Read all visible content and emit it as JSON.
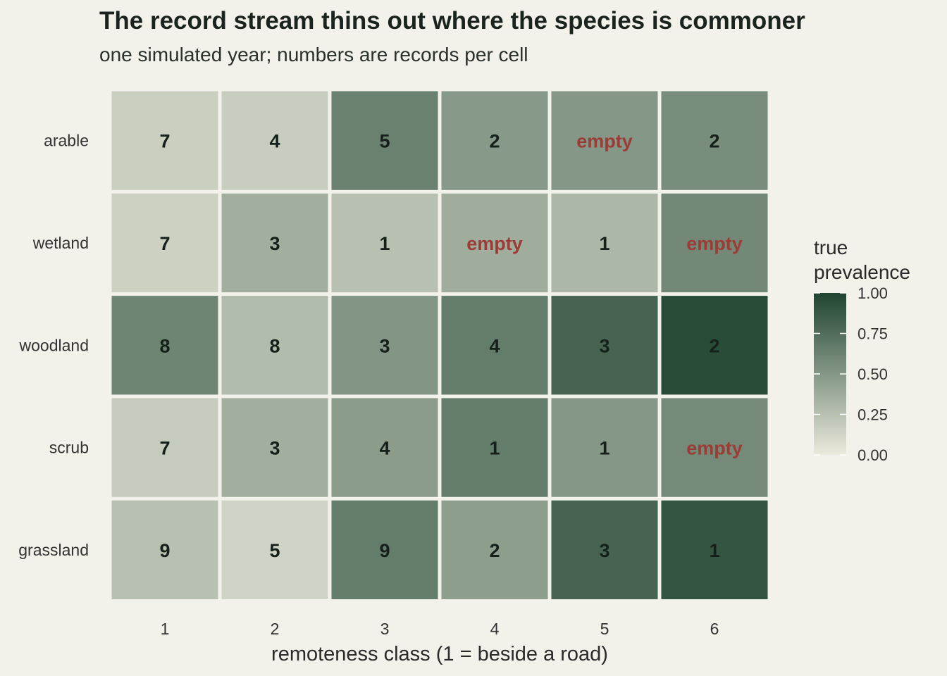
{
  "chart_data": {
    "type": "heatmap",
    "title": "The record stream thins out where the species is commoner",
    "subtitle": "one simulated year; numbers are records per cell",
    "xlabel": "remoteness class (1 = beside a road)",
    "ylabel": "",
    "x_categories": [
      "1",
      "2",
      "3",
      "4",
      "5",
      "6"
    ],
    "y_categories": [
      "arable",
      "wetland",
      "woodland",
      "scrub",
      "grassland"
    ],
    "empty_label": "empty",
    "cells": [
      [
        {
          "records": "7",
          "prevalence": 0.16
        },
        {
          "records": "4",
          "prevalence": 0.17
        },
        {
          "records": "5",
          "prevalence": 0.63
        },
        {
          "records": "2",
          "prevalence": 0.49
        },
        {
          "records": "empty",
          "prevalence": 0.5
        },
        {
          "records": "2",
          "prevalence": 0.56
        }
      ],
      [
        {
          "records": "7",
          "prevalence": 0.15
        },
        {
          "records": "3",
          "prevalence": 0.36
        },
        {
          "records": "1",
          "prevalence": 0.25
        },
        {
          "records": "empty",
          "prevalence": 0.37
        },
        {
          "records": "1",
          "prevalence": 0.31
        },
        {
          "records": "empty",
          "prevalence": 0.59
        }
      ],
      [
        {
          "records": "8",
          "prevalence": 0.61
        },
        {
          "records": "8",
          "prevalence": 0.28
        },
        {
          "records": "3",
          "prevalence": 0.51
        },
        {
          "records": "4",
          "prevalence": 0.66
        },
        {
          "records": "3",
          "prevalence": 0.81
        },
        {
          "records": "2",
          "prevalence": 0.95
        }
      ],
      [
        {
          "records": "7",
          "prevalence": 0.18
        },
        {
          "records": "3",
          "prevalence": 0.36
        },
        {
          "records": "4",
          "prevalence": 0.47
        },
        {
          "records": "1",
          "prevalence": 0.66
        },
        {
          "records": "1",
          "prevalence": 0.5
        },
        {
          "records": "empty",
          "prevalence": 0.58
        }
      ],
      [
        {
          "records": "9",
          "prevalence": 0.25
        },
        {
          "records": "5",
          "prevalence": 0.13
        },
        {
          "records": "9",
          "prevalence": 0.66
        },
        {
          "records": "2",
          "prevalence": 0.46
        },
        {
          "records": "3",
          "prevalence": 0.81
        },
        {
          "records": "1",
          "prevalence": 0.9
        }
      ]
    ],
    "legend": {
      "title_lines": [
        "true",
        "prevalence"
      ],
      "ticks": [
        {
          "value": 1.0,
          "label": "1.00"
        },
        {
          "value": 0.75,
          "label": "0.75"
        },
        {
          "value": 0.5,
          "label": "0.50"
        },
        {
          "value": 0.25,
          "label": "0.25"
        },
        {
          "value": 0.0,
          "label": "0.00"
        }
      ],
      "range": [
        0,
        1
      ],
      "placement": "right"
    },
    "colors": {
      "low": "#ebeadc",
      "high": "#1f4430",
      "empty_text": "#9b3c36",
      "value_text": "#16201a",
      "background": "#f2f1ea"
    }
  }
}
